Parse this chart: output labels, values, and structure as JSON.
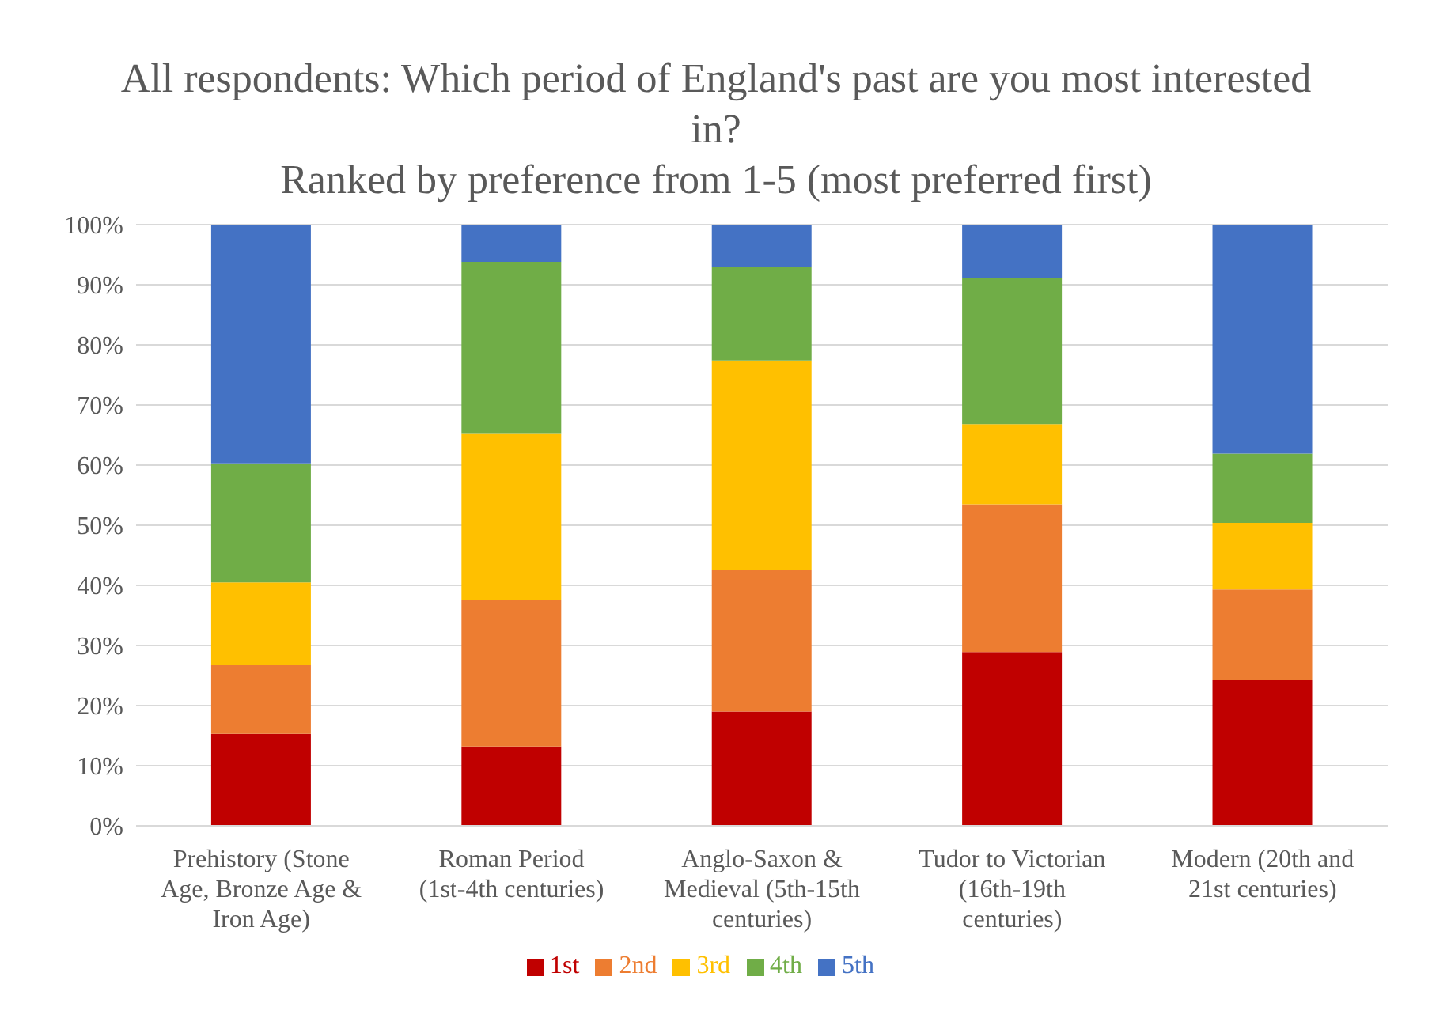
{
  "chart_data": {
    "type": "bar",
    "stacked": true,
    "title": "All respondents: Which period of England's past are you most interested in?\nRanked by preference from 1-5 (most preferred first)",
    "categories": [
      "Prehistory (Stone Age, Bronze Age & Iron Age)",
      "Roman Period (1st-4th centuries)",
      "Anglo-Saxon & Medieval (5th-15th centuries)",
      "Tudor to Victorian (16th-19th centuries)",
      "Modern (20th and 21st centuries)"
    ],
    "series": [
      {
        "name": "1st",
        "color": "#c00000",
        "values": [
          15.3,
          13.2,
          19,
          28.9,
          24.2
        ]
      },
      {
        "name": "2nd",
        "color": "#ed7d31",
        "values": [
          11.4,
          24.4,
          23.6,
          24.6,
          15.1
        ]
      },
      {
        "name": "3rd",
        "color": "#ffc000",
        "values": [
          13.8,
          27.6,
          34.8,
          13.3,
          11.1
        ]
      },
      {
        "name": "4th",
        "color": "#70ad47",
        "values": [
          19.8,
          28.6,
          15.6,
          24.4,
          11.5
        ]
      },
      {
        "name": "5th",
        "color": "#4472c4",
        "values": [
          39.7,
          6.2,
          7,
          8.8,
          38.1
        ]
      }
    ],
    "ylim": [
      0,
      100
    ],
    "yticks": [
      {
        "value": 0,
        "label": "0%"
      },
      {
        "value": 10,
        "label": "10%"
      },
      {
        "value": 20,
        "label": "20%"
      },
      {
        "value": 30,
        "label": "30%"
      },
      {
        "value": 40,
        "label": "40%"
      },
      {
        "value": 50,
        "label": "50%"
      },
      {
        "value": 60,
        "label": "60%"
      },
      {
        "value": 70,
        "label": "70%"
      },
      {
        "value": 80,
        "label": "80%"
      },
      {
        "value": 90,
        "label": "90%"
      },
      {
        "value": 100,
        "label": "100%"
      }
    ],
    "grid": "y",
    "legend": "bottom"
  }
}
